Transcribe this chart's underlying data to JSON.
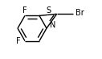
{
  "background_color": "#ffffff",
  "bond_color": "#000000",
  "bond_width": 1.0,
  "font_size": 7.0,
  "figsize": [
    1.27,
    0.73
  ],
  "dpi": 100,
  "xlim": [
    0,
    127
  ],
  "ylim": [
    0,
    73
  ]
}
